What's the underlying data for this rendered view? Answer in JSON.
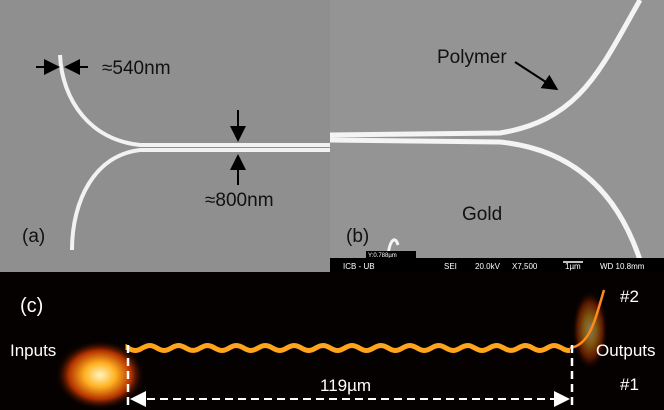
{
  "panel_a": {
    "label": "(a)",
    "width_top": "≈540nm",
    "width_middle": "≈800nm"
  },
  "panel_b": {
    "label": "(b)",
    "polymer": "Polymer",
    "gold": "Gold",
    "marker": "Y:0.788µm",
    "info_bar": [
      "ICB - UB",
      "SEI",
      "20.0kV",
      "X7,500",
      "1µm",
      "WD 10.8mm"
    ]
  },
  "panel_c": {
    "label": "(c)",
    "output_2": "#2",
    "inputs": "Inputs",
    "outputs": "Outputs",
    "length": "119µm",
    "output_1": "#1"
  }
}
